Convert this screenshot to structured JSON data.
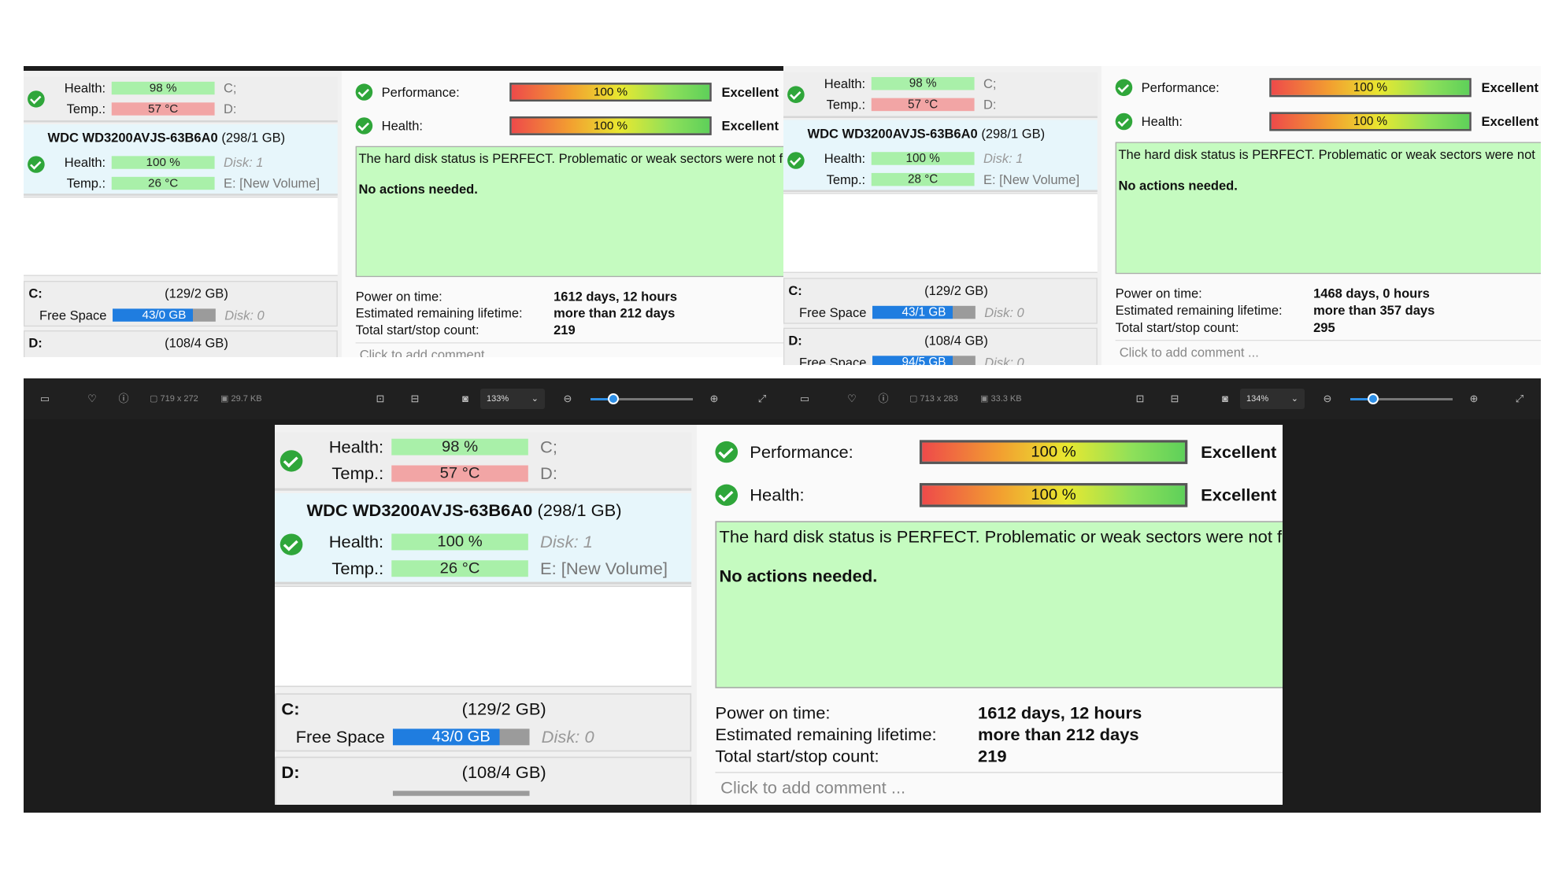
{
  "screens": {
    "tl": {
      "disk1": {
        "health_label": "Health:",
        "health": "98 %",
        "temp_label": "Temp.:",
        "temp": "57 °C",
        "after1": "C;",
        "after2": "D:"
      },
      "disk2": {
        "title": "WDC WD3200AVJS-63B6A0",
        "size": "(298/1 GB)",
        "health_label": "Health:",
        "health": "100 %",
        "temp_label": "Temp.:",
        "temp": "26 °C",
        "after1": "Disk: 1",
        "after2": "E: [New Volume]"
      },
      "vol_c": {
        "letter": "C:",
        "size": "(129/2 GB)",
        "free_label": "Free Space",
        "free": "43/0 GB",
        "disk": "Disk: 0"
      },
      "vol_d": {
        "letter": "D:",
        "size": "(108/4 GB)",
        "free_label": "",
        "free": "",
        "disk": ""
      },
      "perf_label": "Performance:",
      "perf": "100 %",
      "perf_rating": "Excellent",
      "health_label": "Health:",
      "health": "100 %",
      "health_rating": "Excellent",
      "msg": "The hard disk status is PERFECT. Problematic or weak sectors were not f",
      "msg2": "No actions needed.",
      "power_label": "Power on time:",
      "power": "1612 days, 12 hours",
      "life_label": "Estimated remaining lifetime:",
      "life": "more than 212 days",
      "count_label": "Total start/stop count:",
      "count": "219",
      "comment": "Click to add comment ..."
    },
    "tr": {
      "disk1": {
        "health_label": "Health:",
        "health": "98 %",
        "temp_label": "Temp.:",
        "temp": "57 °C",
        "after1": "C;",
        "after2": "D:"
      },
      "disk2": {
        "title": "WDC WD3200AVJS-63B6A0",
        "size": "(298/1 GB)",
        "health_label": "Health:",
        "health": "100 %",
        "temp_label": "Temp.:",
        "temp": "28 °C",
        "after1": "Disk: 1",
        "after2": "E: [New Volume]"
      },
      "vol_c": {
        "letter": "C:",
        "size": "(129/2 GB)",
        "free_label": "Free Space",
        "free": "43/1 GB",
        "disk": "Disk: 0"
      },
      "vol_d": {
        "letter": "D:",
        "size": "(108/4 GB)",
        "free_label": "Free Space",
        "free": "94/5 GB",
        "disk": "Disk: 0"
      },
      "perf_label": "Performance:",
      "perf": "100 %",
      "perf_rating": "Excellent",
      "health_label": "Health:",
      "health": "100 %",
      "health_rating": "Excellent",
      "msg": "The hard disk status is PERFECT. Problematic or weak sectors were not",
      "msg2": "No actions needed.",
      "power_label": "Power on time:",
      "power": "1468 days, 0 hours",
      "life_label": "Estimated remaining lifetime:",
      "life": "more than 357 days",
      "count_label": "Total start/stop count:",
      "count": "295",
      "comment": "Click to add comment ..."
    },
    "bottom": {
      "disk1": {
        "health_label": "Health:",
        "health": "98 %",
        "temp_label": "Temp.:",
        "temp": "57 °C",
        "after1": "C;",
        "after2": "D:"
      },
      "disk2": {
        "title": "WDC WD3200AVJS-63B6A0",
        "size": "(298/1 GB)",
        "health_label": "Health:",
        "health": "100 %",
        "temp_label": "Temp.:",
        "temp": "26 °C",
        "after1": "Disk: 1",
        "after2": "E: [New Volume]"
      },
      "vol_c": {
        "letter": "C:",
        "size": "(129/2 GB)",
        "free_label": "Free Space",
        "free": "43/0 GB",
        "disk": "Disk: 0"
      },
      "vol_d": {
        "letter": "D:",
        "size": "(108/4 GB)",
        "free_label": "",
        "free": "",
        "disk": ""
      },
      "perf_label": "Performance:",
      "perf": "100 %",
      "perf_rating": "Excellent",
      "health_label": "Health:",
      "health": "100 %",
      "health_rating": "Excellent",
      "msg": "The hard disk status is PERFECT. Problematic or weak sectors were not f",
      "msg2": "No actions needed.",
      "power_label": "Power on time:",
      "power": "1612 days, 12 hours",
      "life_label": "Estimated remaining lifetime:",
      "life": "more than 212 days",
      "count_label": "Total start/stop count:",
      "count": "219",
      "comment": "Click to add comment ..."
    }
  },
  "toolbar_left": {
    "dims": "719 x 272",
    "size": "29.7 KB",
    "zoom": "133%",
    "zoom_level": 0.2
  },
  "toolbar_right": {
    "dims": "713 x 283",
    "size": "33.3 KB",
    "zoom": "134%",
    "zoom_level": 0.2
  },
  "icons": [
    "monitor-icon",
    "heart-icon",
    "info-icon",
    "image-size-icon",
    "file-size-icon",
    "fit-icon",
    "actual-size-icon",
    "screenshot-icon",
    "chevron-down-icon",
    "zoom-out-icon",
    "zoom-in-icon",
    "fullscreen-icon"
  ]
}
